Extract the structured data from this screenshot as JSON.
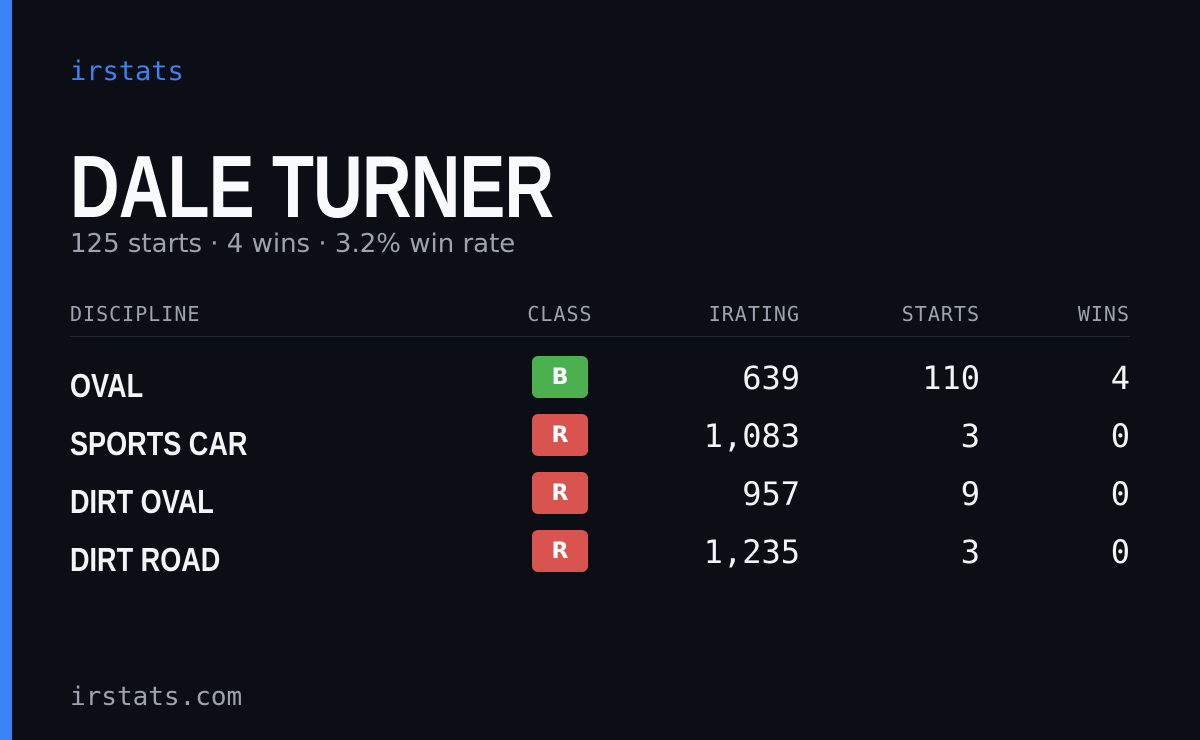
{
  "brand": "irstats",
  "name": "DALE TURNER",
  "summary": "125 starts · 4 wins · 3.2% win rate",
  "table": {
    "headers": [
      "DISCIPLINE",
      "CLASS",
      "IRATING",
      "STARTS",
      "WINS"
    ],
    "rows": [
      {
        "discipline": "OVAL",
        "class": "B",
        "class_color": "#4caf50",
        "irating": "639",
        "starts": "110",
        "wins": "4"
      },
      {
        "discipline": "SPORTS CAR",
        "class": "R",
        "class_color": "#d9534f",
        "irating": "1,083",
        "starts": "3",
        "wins": "0"
      },
      {
        "discipline": "DIRT OVAL",
        "class": "R",
        "class_color": "#d9534f",
        "irating": "957",
        "starts": "9",
        "wins": "0"
      },
      {
        "discipline": "DIRT ROAD",
        "class": "R",
        "class_color": "#d9534f",
        "irating": "1,235",
        "starts": "3",
        "wins": "0"
      }
    ]
  },
  "footer": "irstats.com"
}
